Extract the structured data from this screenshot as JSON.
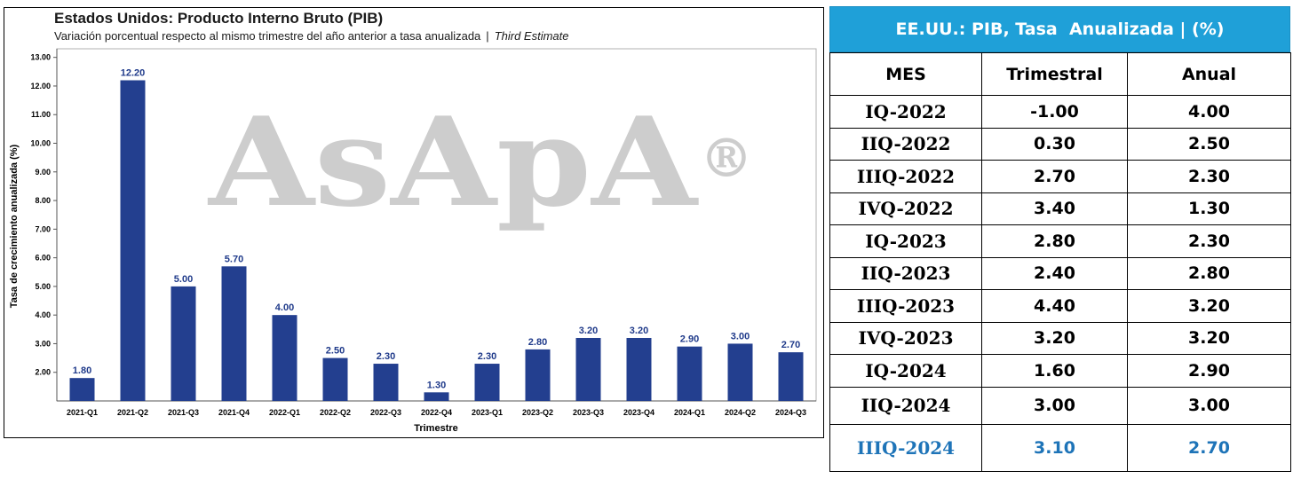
{
  "chart": {
    "title": "Estados Unidos: Producto Interno Bruto (PIB)",
    "subtitle": "Variación porcentual respecto al mismo trimestre del año anterior a tasa anualizada",
    "subtitle_separator": "|",
    "subtitle_estimate": "Third Estimate",
    "watermark": "AsApA",
    "watermark_symbol": "®"
  },
  "chart_data": {
    "type": "bar",
    "categories": [
      "2021-Q1",
      "2021-Q2",
      "2021-Q3",
      "2021-Q4",
      "2022-Q1",
      "2022-Q2",
      "2022-Q3",
      "2022-Q4",
      "2023-Q1",
      "2023-Q2",
      "2023-Q3",
      "2023-Q4",
      "2024-Q1",
      "2024-Q2",
      "2024-Q3"
    ],
    "values": [
      1.8,
      12.2,
      5.0,
      5.7,
      4.0,
      2.5,
      2.3,
      1.3,
      2.3,
      2.8,
      3.2,
      3.2,
      2.9,
      3.0,
      2.7
    ],
    "value_labels": [
      "1.80",
      "12.20",
      "5.00",
      "5.70",
      "4.00",
      "2.50",
      "2.30",
      "1.30",
      "2.30",
      "2.80",
      "3.20",
      "3.20",
      "2.90",
      "3.00",
      "2.70"
    ],
    "yticks": [
      "2.00",
      "3.00",
      "4.00",
      "5.00",
      "6.00",
      "7.00",
      "8.00",
      "9.00",
      "10.00",
      "11.00",
      "12.00",
      "13.00"
    ],
    "xlabel": "Trimestre",
    "ylabel": "Tasa de crecimiento anualizada (%)",
    "ylim": [
      1.0,
      13.3
    ],
    "bar_color": "#233f8f",
    "label_color": "#1f3a8a",
    "grid": false
  },
  "table": {
    "header": "EE.UU.: PIB, Tasa  Anualizada | (%)",
    "columns": [
      "MES",
      "Trimestral",
      "Anual"
    ],
    "rows": [
      [
        "IQ-2022",
        "-1.00",
        "4.00"
      ],
      [
        "IIQ-2022",
        "0.30",
        "2.50"
      ],
      [
        "IIIQ-2022",
        "2.70",
        "2.30"
      ],
      [
        "IVQ-2022",
        "3.40",
        "1.30"
      ],
      [
        "IQ-2023",
        "2.80",
        "2.30"
      ],
      [
        "IIQ-2023",
        "2.40",
        "2.80"
      ],
      [
        "IIIQ-2023",
        "4.40",
        "3.20"
      ],
      [
        "IVQ-2023",
        "3.20",
        "3.20"
      ],
      [
        "IQ-2024",
        "1.60",
        "2.90"
      ],
      [
        "IIQ-2024",
        "3.00",
        "3.00"
      ],
      [
        "IIIQ-2024",
        "3.10",
        "2.70"
      ]
    ],
    "header_bg": "#1fa0d8",
    "highlight_color": "#1e74b8"
  }
}
